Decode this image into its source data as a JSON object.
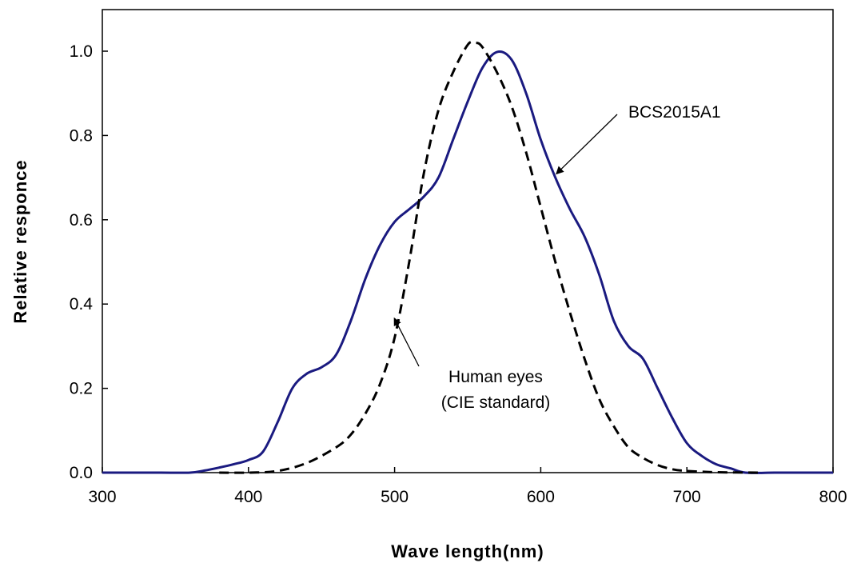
{
  "chart_data": {
    "type": "line",
    "title": "",
    "xlabel": "Wave length(nm)",
    "ylabel": "Relative responce",
    "xlim": [
      300,
      800
    ],
    "ylim": [
      0,
      1.0
    ],
    "x_ticks": [
      "300",
      "400",
      "500",
      "600",
      "700",
      "800"
    ],
    "y_ticks": [
      "0.0",
      "0.2",
      "0.4",
      "0.6",
      "0.8",
      "1.0"
    ],
    "grid": false,
    "legend": "none",
    "series": [
      {
        "name": "BCS2015A1",
        "color": "#1a1a80",
        "style": "solid",
        "x": [
          300,
          320,
          340,
          360,
          370,
          380,
          390,
          400,
          410,
          420,
          430,
          440,
          450,
          460,
          470,
          480,
          490,
          500,
          510,
          520,
          530,
          540,
          550,
          560,
          570,
          580,
          590,
          600,
          610,
          620,
          630,
          640,
          650,
          660,
          670,
          680,
          690,
          700,
          710,
          720,
          730,
          740,
          760,
          780,
          800
        ],
        "y": [
          0.0,
          0.0,
          0.0,
          0.0,
          0.005,
          0.012,
          0.02,
          0.03,
          0.05,
          0.12,
          0.2,
          0.235,
          0.25,
          0.28,
          0.36,
          0.46,
          0.54,
          0.595,
          0.625,
          0.655,
          0.7,
          0.79,
          0.88,
          0.96,
          0.998,
          0.98,
          0.9,
          0.79,
          0.7,
          0.625,
          0.56,
          0.47,
          0.36,
          0.3,
          0.27,
          0.2,
          0.13,
          0.07,
          0.04,
          0.02,
          0.01,
          0.0,
          0.0,
          0.0,
          0.0
        ]
      },
      {
        "name": "Human eyes (CIE standard)",
        "color": "#000000",
        "style": "dashed",
        "x": [
          380,
          400,
          420,
          440,
          460,
          470,
          480,
          490,
          500,
          510,
          520,
          530,
          540,
          550,
          555,
          560,
          570,
          580,
          590,
          600,
          610,
          620,
          630,
          640,
          650,
          660,
          670,
          680,
          690,
          700,
          720,
          750
        ],
        "y": [
          0.0,
          0.0,
          0.004,
          0.023,
          0.06,
          0.09,
          0.14,
          0.21,
          0.32,
          0.5,
          0.71,
          0.86,
          0.95,
          1.015,
          1.02,
          1.01,
          0.95,
          0.87,
          0.76,
          0.63,
          0.5,
          0.38,
          0.27,
          0.175,
          0.11,
          0.06,
          0.035,
          0.018,
          0.008,
          0.004,
          0.001,
          0.0
        ]
      }
    ],
    "annotations": [
      {
        "id": "bcs",
        "lines": [
          "BCS2015A1"
        ],
        "target": [
          611,
          0.71
        ]
      },
      {
        "id": "cie",
        "lines": [
          "Human eyes",
          "(CIE standard)"
        ],
        "target": [
          500,
          0.365
        ]
      }
    ]
  }
}
